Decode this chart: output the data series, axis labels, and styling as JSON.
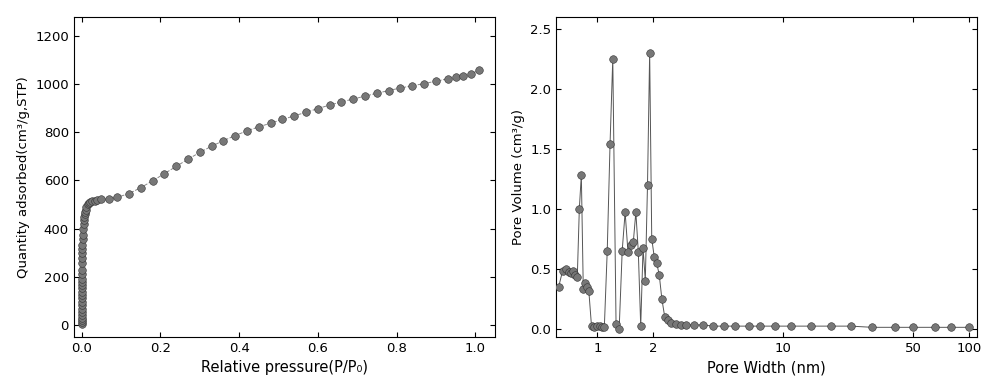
{
  "left_chart": {
    "xlabel": "Relative pressure(P/P₀)",
    "ylabel": "Quantity adsorbed(cm³/g,STP)",
    "ylim": [
      -50,
      1280
    ],
    "xlim": [
      -0.02,
      1.05
    ],
    "yticks": [
      0,
      200,
      400,
      600,
      800,
      1000,
      1200
    ],
    "xticks": [
      0.0,
      0.2,
      0.4,
      0.6,
      0.8,
      1.0
    ],
    "x": [
      5e-05,
      0.0001,
      0.00015,
      0.0002,
      0.00025,
      0.0003,
      0.00035,
      0.0004,
      0.00045,
      0.0005,
      0.00055,
      0.0006,
      0.00065,
      0.0007,
      0.00075,
      0.0008,
      0.0009,
      0.001,
      0.0012,
      0.0014,
      0.0016,
      0.0018,
      0.002,
      0.0025,
      0.003,
      0.004,
      0.005,
      0.006,
      0.007,
      0.008,
      0.009,
      0.01,
      0.012,
      0.015,
      0.018,
      0.022,
      0.027,
      0.033,
      0.04,
      0.05,
      0.07,
      0.09,
      0.12,
      0.15,
      0.18,
      0.21,
      0.24,
      0.27,
      0.3,
      0.33,
      0.36,
      0.39,
      0.42,
      0.45,
      0.48,
      0.51,
      0.54,
      0.57,
      0.6,
      0.63,
      0.66,
      0.69,
      0.72,
      0.75,
      0.78,
      0.81,
      0.84,
      0.87,
      0.9,
      0.93,
      0.95,
      0.97,
      0.99,
      1.01
    ],
    "y": [
      5,
      12,
      20,
      30,
      42,
      55,
      68,
      82,
      96,
      110,
      124,
      138,
      152,
      165,
      177,
      190,
      210,
      228,
      255,
      278,
      298,
      315,
      330,
      355,
      375,
      400,
      420,
      435,
      448,
      459,
      468,
      477,
      489,
      500,
      506,
      510,
      513,
      516,
      519,
      521,
      524,
      530,
      545,
      570,
      598,
      628,
      658,
      688,
      716,
      742,
      765,
      786,
      806,
      822,
      838,
      853,
      868,
      883,
      898,
      913,
      926,
      938,
      950,
      962,
      973,
      984,
      993,
      1002,
      1012,
      1022,
      1028,
      1034,
      1042,
      1058
    ],
    "marker_color": "#555555",
    "line_color": "#888888",
    "marker_size": 5.5
  },
  "right_chart": {
    "xlabel": "Pore Width (nm)",
    "ylabel": "Pore Volume (cm³/g)",
    "ylim": [
      -0.07,
      2.6
    ],
    "xlim_log": [
      0.6,
      110
    ],
    "yticks": [
      0.0,
      0.5,
      1.0,
      1.5,
      2.0,
      2.5
    ],
    "xticks": [
      1,
      2,
      10,
      50,
      100
    ],
    "xticklabels": [
      "1",
      "2",
      "10",
      "50",
      "100"
    ],
    "x": [
      0.62,
      0.65,
      0.68,
      0.7,
      0.72,
      0.74,
      0.76,
      0.78,
      0.8,
      0.82,
      0.84,
      0.86,
      0.88,
      0.9,
      0.93,
      0.96,
      1.0,
      1.03,
      1.06,
      1.09,
      1.13,
      1.17,
      1.21,
      1.26,
      1.31,
      1.36,
      1.41,
      1.46,
      1.51,
      1.56,
      1.61,
      1.66,
      1.71,
      1.76,
      1.81,
      1.86,
      1.91,
      1.96,
      2.02,
      2.08,
      2.15,
      2.22,
      2.3,
      2.4,
      2.5,
      2.65,
      2.8,
      3.0,
      3.3,
      3.7,
      4.2,
      4.8,
      5.5,
      6.5,
      7.5,
      9.0,
      11.0,
      14.0,
      18.0,
      23.0,
      30.0,
      40.0,
      50.0,
      65.0,
      80.0,
      100.0
    ],
    "y": [
      0.35,
      0.48,
      0.5,
      0.47,
      0.46,
      0.48,
      0.45,
      0.43,
      1.0,
      1.28,
      0.33,
      0.38,
      0.35,
      0.31,
      0.02,
      0.01,
      0.02,
      0.02,
      0.01,
      0.01,
      0.65,
      1.54,
      2.25,
      0.04,
      0.0,
      0.65,
      0.97,
      0.64,
      0.7,
      0.72,
      0.97,
      0.64,
      0.02,
      0.67,
      0.4,
      1.2,
      2.3,
      0.75,
      0.6,
      0.55,
      0.45,
      0.25,
      0.1,
      0.07,
      0.05,
      0.04,
      0.03,
      0.03,
      0.03,
      0.03,
      0.02,
      0.02,
      0.02,
      0.02,
      0.02,
      0.02,
      0.02,
      0.02,
      0.02,
      0.02,
      0.01,
      0.01,
      0.01,
      0.01,
      0.01,
      0.01
    ],
    "marker_color": "#555555",
    "line_color": "#555555",
    "marker_size": 5.5
  }
}
